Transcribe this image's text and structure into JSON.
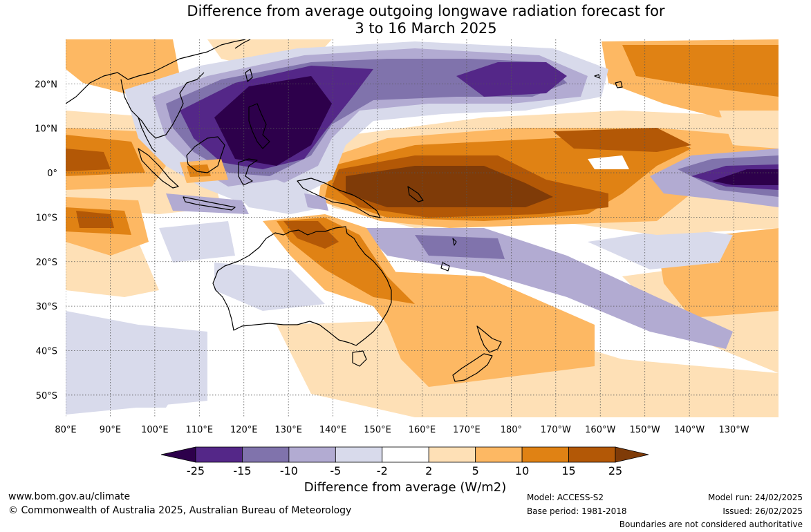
{
  "title": {
    "line1": "Difference from average outgoing longwave radiation forecast for",
    "line2": "3 to 16 March 2025"
  },
  "map": {
    "lon_labels": [
      "80°E",
      "90°E",
      "100°E",
      "110°E",
      "120°E",
      "130°E",
      "140°E",
      "150°E",
      "160°E",
      "170°E",
      "180°",
      "170°W",
      "160°W",
      "150°W",
      "140°W",
      "130°W"
    ],
    "lat_labels": [
      "20°N",
      "10°N",
      "0°",
      "10°S",
      "20°S",
      "30°S",
      "40°S",
      "50°S"
    ],
    "lon_range": [
      80,
      240
    ],
    "lat_range": [
      -55,
      30
    ]
  },
  "legend": {
    "title": "Difference from average (W/m2)",
    "tick_labels": [
      "-25",
      "-15",
      "-10",
      "-5",
      "-2",
      "2",
      "5",
      "10",
      "15",
      "25"
    ],
    "colors": [
      "#2d004b",
      "#542788",
      "#8073ac",
      "#b2abd2",
      "#d8daeb",
      "#ffffff",
      "#fee0b6",
      "#fdb863",
      "#e08214",
      "#b35806",
      "#7f3b08"
    ]
  },
  "footer": {
    "website": "www.bom.gov.au/climate",
    "copyright": "© Commonwealth of Australia 2025, Australian Bureau of Meteorology",
    "model": "Model: ACCESS-S2",
    "base_period": "Base period: 1981-2018",
    "model_run": "Model run: 24/02/2025",
    "issued": "Issued: 26/02/2025",
    "disclaimer": "Boundaries are not considered authoritative"
  }
}
